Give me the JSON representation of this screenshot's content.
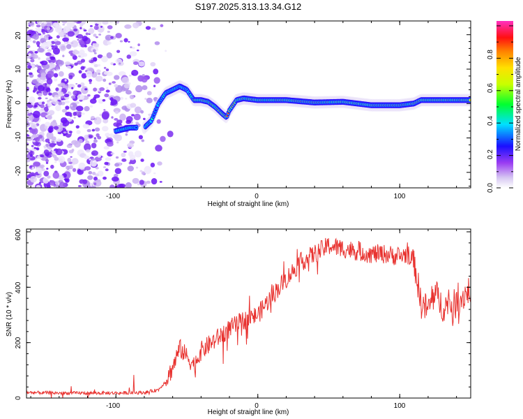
{
  "title": "S197.2025.313.13.34.G12",
  "chart_data": [
    {
      "type": "heatmap",
      "title": "S197.2025.313.13.34.G12",
      "xlabel": "Height of straight line (km)",
      "ylabel": "Frequency (Hz)",
      "xlim": [
        -163,
        150
      ],
      "ylim": [
        -24.5,
        24
      ],
      "xticks": [
        "-100",
        "0",
        "100"
      ],
      "yticks": [
        "-20",
        "-10",
        "0",
        "10",
        "20"
      ],
      "colorbar": {
        "label": "Normalized spectral amplitude",
        "range": [
          0,
          1
        ],
        "ticks": [
          "0.0",
          "0.2",
          "0.4",
          "0.6",
          "0.8"
        ]
      },
      "ridge": {
        "x": [
          -100,
          -90,
          -80,
          -75,
          -70,
          -65,
          -60,
          -55,
          -50,
          -45,
          -40,
          -35,
          -30,
          -25,
          -22,
          -20,
          -15,
          -10,
          0,
          20,
          40,
          60,
          80,
          100,
          110,
          115,
          130,
          150
        ],
        "y": [
          -8,
          -7,
          -7,
          -5,
          0,
          3,
          4,
          5,
          4,
          1,
          1,
          0.5,
          -1,
          -3,
          -4,
          -2,
          1,
          1.5,
          1,
          1,
          0.3,
          0.5,
          -0.5,
          -0.5,
          0,
          1,
          1,
          1
        ]
      }
    },
    {
      "type": "line",
      "xlabel": "Height of straight line (km)",
      "ylabel": "SNR (10 * v/v)",
      "xlim": [
        -163,
        150
      ],
      "ylim": [
        0,
        610
      ],
      "xticks": [
        "-100",
        "0",
        "100"
      ],
      "yticks": [
        "0",
        "200",
        "400",
        "600"
      ],
      "series": [
        {
          "name": "SNR",
          "color": "#e8322f",
          "x": [
            -163,
            -140,
            -120,
            -100,
            -80,
            -70,
            -65,
            -60,
            -55,
            -50,
            -45,
            -40,
            -35,
            -30,
            -20,
            -10,
            0,
            10,
            20,
            30,
            40,
            50,
            60,
            70,
            80,
            90,
            100,
            105,
            110,
            115,
            120,
            125,
            130,
            140,
            150
          ],
          "y": [
            20,
            18,
            18,
            18,
            20,
            30,
            60,
            110,
            180,
            150,
            120,
            170,
            190,
            210,
            250,
            280,
            300,
            370,
            430,
            490,
            520,
            550,
            540,
            530,
            520,
            520,
            510,
            520,
            500,
            340,
            320,
            380,
            330,
            340,
            400
          ]
        }
      ]
    }
  ]
}
